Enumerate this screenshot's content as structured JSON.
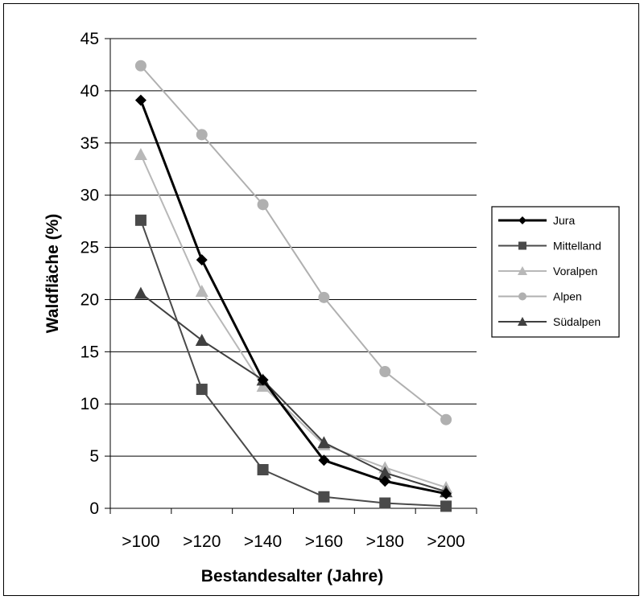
{
  "chart_data": {
    "type": "line",
    "categories": [
      ">100",
      ">120",
      ">140",
      ">160",
      ">180",
      ">200"
    ],
    "xlabel": "Bestandesalter (Jahre)",
    "ylabel": "Waldfläche (%)",
    "ylim": [
      0,
      45
    ],
    "yticks": [
      0,
      5,
      10,
      15,
      20,
      25,
      30,
      35,
      40,
      45
    ],
    "grid": true,
    "legend_position": "right",
    "series": [
      {
        "name": "Jura",
        "marker": "diamond",
        "color": "#000000",
        "width": 3,
        "values": [
          39.1,
          23.8,
          12.3,
          4.6,
          2.6,
          1.4
        ]
      },
      {
        "name": "Mittelland",
        "marker": "square",
        "color": "#4a4a4a",
        "width": 2,
        "values": [
          27.6,
          11.4,
          3.7,
          1.1,
          0.5,
          0.2
        ]
      },
      {
        "name": "Voralpen",
        "marker": "triangle",
        "color": "#b8b8b8",
        "width": 2,
        "values": [
          33.9,
          20.8,
          11.7,
          6.1,
          3.9,
          2.0
        ]
      },
      {
        "name": "Alpen",
        "marker": "circle",
        "color": "#b0b0b0",
        "width": 2,
        "values": [
          42.4,
          35.8,
          29.1,
          20.2,
          13.1,
          8.5
        ]
      },
      {
        "name": "Südalpen",
        "marker": "triangle",
        "color": "#404040",
        "width": 2,
        "values": [
          20.6,
          16.1,
          12.3,
          6.3,
          3.4,
          1.6
        ]
      }
    ]
  }
}
